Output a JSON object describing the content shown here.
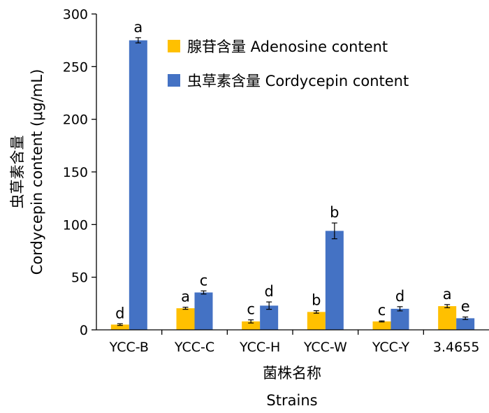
{
  "chart_data": {
    "type": "bar",
    "categories": [
      "YCC-B",
      "YCC-C",
      "YCC-H",
      "YCC-W",
      "YCC-Y",
      "3.4655"
    ],
    "series": [
      {
        "name": "腺苷含量 Adenosine content",
        "color": "#FFC000",
        "values": [
          5,
          20.5,
          8,
          17,
          8,
          22.5
        ],
        "errors": [
          0.8,
          1.0,
          1.5,
          1.2,
          0.5,
          1.5
        ],
        "significance": [
          "d",
          "a",
          "c",
          "b",
          "c",
          "a"
        ]
      },
      {
        "name": "虫草素含量 Cordycepin content",
        "color": "#4472C4",
        "values": [
          275,
          35.5,
          23,
          94,
          20,
          11
        ],
        "errors": [
          2.5,
          1.5,
          3.5,
          7.5,
          2.0,
          1.2
        ],
        "significance": [
          "a",
          "c",
          "d",
          "b",
          "d",
          "e"
        ]
      }
    ],
    "ylim": [
      0,
      300
    ],
    "yticks": [
      0,
      50,
      100,
      150,
      200,
      250,
      300
    ],
    "ylabel_cn": "虫草素含量",
    "ylabel_en": "Cordycepin content (μg/mL)",
    "xlabel_cn": "菌株名称",
    "xlabel_en": "Strains",
    "legend_position": "top-right",
    "grid": false
  }
}
